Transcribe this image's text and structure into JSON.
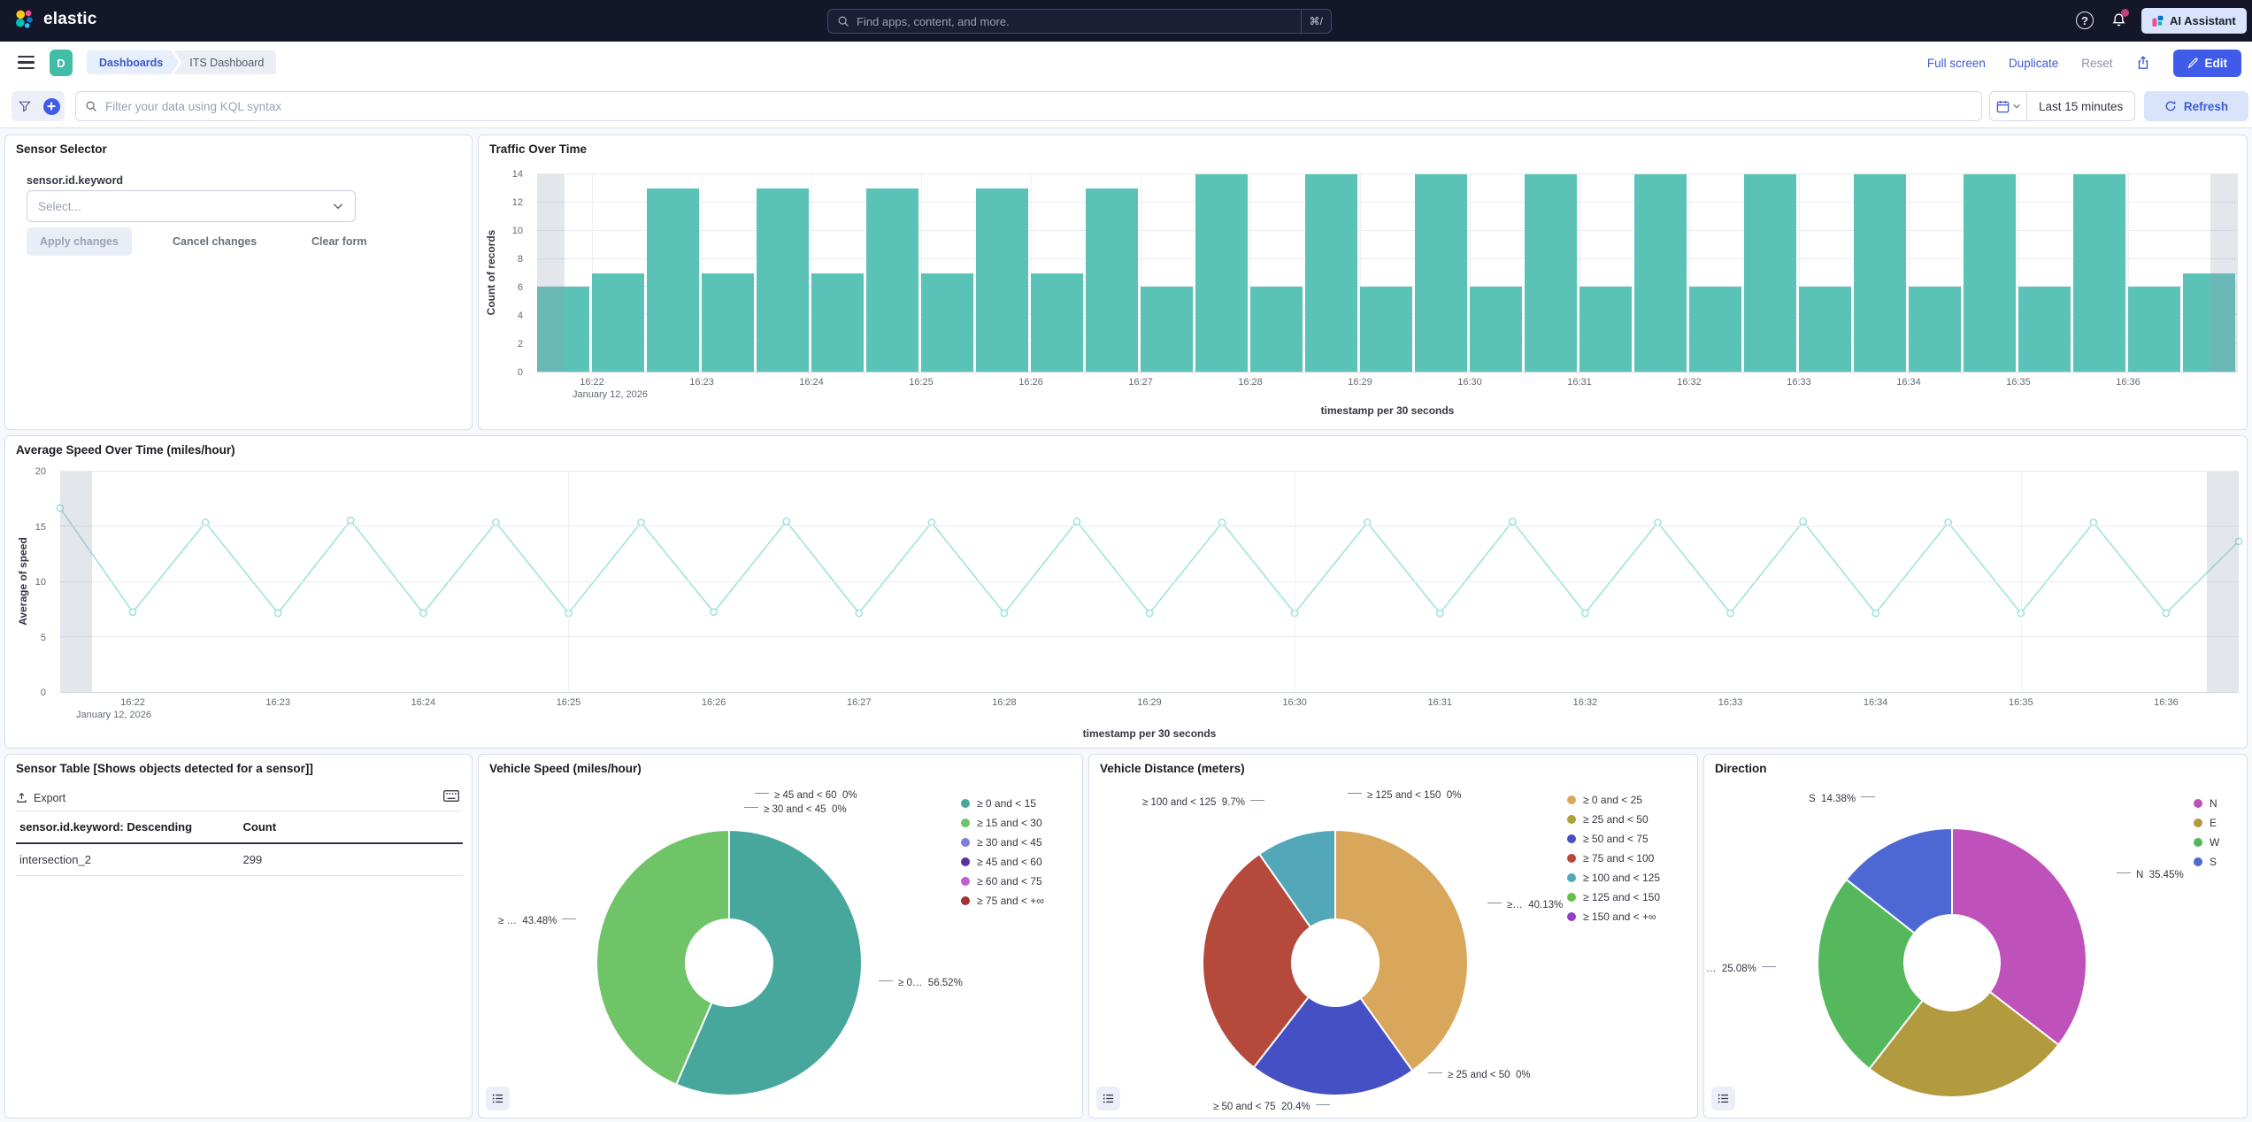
{
  "navbar": {
    "logo_text": "elastic",
    "search_placeholder": "Find apps, content, and more.",
    "search_shortcut": "⌘/",
    "help_label": "?",
    "ai_assistant_label": "AI Assistant"
  },
  "header": {
    "app_badge": "D",
    "breadcrumbs": [
      "Dashboards",
      "ITS Dashboard"
    ],
    "actions": {
      "full_screen": "Full screen",
      "duplicate": "Duplicate",
      "reset": "Reset",
      "edit": "Edit"
    }
  },
  "filter_bar": {
    "kql_placeholder": "Filter your data using KQL syntax",
    "time_range": "Last 15 minutes",
    "refresh_label": "Refresh"
  },
  "panels": {
    "sensor_selector": {
      "title": "Sensor Selector",
      "field_label": "sensor.id.keyword",
      "select_placeholder": "Select...",
      "apply_label": "Apply changes",
      "cancel_label": "Cancel changes",
      "clear_label": "Clear form"
    },
    "sensor_table": {
      "title": "Sensor Table [Shows objects detected for a sensor]]",
      "export_label": "Export",
      "columns": [
        "sensor.id.keyword: Descending",
        "Count"
      ],
      "rows": [
        [
          "intersection_2",
          "299"
        ]
      ]
    },
    "vehicle_speed": {
      "callouts": [
        "≥ 45 and < 60  0%",
        "≥ 30 and < 45  0%",
        "≥ …  43.48%",
        "≥ 0…  56.52%"
      ]
    },
    "vehicle_distance": {
      "callouts": [
        "≥ 125 and < 150  0%",
        "≥ 100 and < 125  9.7%",
        "≥…  40.13%",
        "≥ 25 and < 50  0%",
        "≥ 50 and < 75  20.4%"
      ]
    },
    "direction": {
      "callouts": [
        "S  14.38%",
        "N  35.45%",
        "…  25.08%"
      ]
    }
  },
  "chart_data": [
    {
      "id": "traffic",
      "type": "bar",
      "title": "Traffic Over Time",
      "xlabel": "timestamp per 30 seconds",
      "ylabel": "Count of records",
      "ylim": [
        0,
        14
      ],
      "yticks": [
        0,
        2,
        4,
        6,
        8,
        10,
        12,
        14
      ],
      "x_tick_labels": [
        "16:22",
        "16:23",
        "16:24",
        "16:25",
        "16:26",
        "16:27",
        "16:28",
        "16:29",
        "16:30",
        "16:31",
        "16:32",
        "16:33",
        "16:34",
        "16:35",
        "16:36"
      ],
      "date_label": "January 12, 2026",
      "categories": [
        "16:21:30",
        "16:22:00",
        "16:22:30",
        "16:23:00",
        "16:23:30",
        "16:24:00",
        "16:24:30",
        "16:25:00",
        "16:25:30",
        "16:26:00",
        "16:26:30",
        "16:27:00",
        "16:27:30",
        "16:28:00",
        "16:28:30",
        "16:29:00",
        "16:29:30",
        "16:30:00",
        "16:30:30",
        "16:31:00",
        "16:31:30",
        "16:32:00",
        "16:32:30",
        "16:33:00",
        "16:33:30",
        "16:34:00",
        "16:34:30",
        "16:35:00",
        "16:35:30",
        "16:36:00",
        "16:36:30"
      ],
      "values": [
        6,
        7,
        13,
        7,
        13,
        7,
        13,
        7,
        13,
        7,
        13,
        6,
        14,
        6,
        14,
        6,
        14,
        6,
        14,
        6,
        14,
        6,
        14,
        6,
        14,
        6,
        14,
        6,
        14,
        6,
        7
      ],
      "color": "#5bc2b7",
      "grid": true,
      "partial_bucket_shading": "first and last half-slot"
    },
    {
      "id": "avg_speed",
      "type": "line",
      "title": "Average Speed Over Time (miles/hour)",
      "xlabel": "timestamp per 30 seconds",
      "ylabel": "Average of speed",
      "ylim": [
        0,
        20
      ],
      "yticks": [
        0,
        5,
        10,
        15,
        20
      ],
      "x_tick_labels": [
        "16:22",
        "16:23",
        "16:24",
        "16:25",
        "16:26",
        "16:27",
        "16:28",
        "16:29",
        "16:30",
        "16:31",
        "16:32",
        "16:33",
        "16:34",
        "16:35",
        "16:36"
      ],
      "date_label": "January 12, 2026",
      "categories": [
        "16:21:30",
        "16:22:00",
        "16:22:30",
        "16:23:00",
        "16:23:30",
        "16:24:00",
        "16:24:30",
        "16:25:00",
        "16:25:30",
        "16:26:00",
        "16:26:30",
        "16:27:00",
        "16:27:30",
        "16:28:00",
        "16:28:30",
        "16:29:00",
        "16:29:30",
        "16:30:00",
        "16:30:30",
        "16:31:00",
        "16:31:30",
        "16:32:00",
        "16:32:30",
        "16:33:00",
        "16:33:30",
        "16:34:00",
        "16:34:30",
        "16:35:00",
        "16:35:30",
        "16:36:00",
        "16:36:30"
      ],
      "values": [
        16.7,
        7.3,
        15.4,
        7.2,
        15.6,
        7.2,
        15.4,
        7.2,
        15.4,
        7.3,
        15.5,
        7.2,
        15.4,
        7.2,
        15.5,
        7.2,
        15.4,
        7.2,
        15.4,
        7.2,
        15.5,
        7.2,
        15.4,
        7.2,
        15.5,
        7.2,
        15.4,
        7.2,
        15.4,
        7.2,
        13.7
      ],
      "color": "#9fe3da",
      "marker": "open-circle"
    },
    {
      "id": "vehicle_speed",
      "type": "pie",
      "title": "Vehicle Speed (miles/hour)",
      "legend_position": "right",
      "slices": [
        {
          "label": "≥ 0 and < 15",
          "pct": 56.52,
          "color": "#47a79c"
        },
        {
          "label": "≥ 15 and < 30",
          "pct": 43.48,
          "color": "#6ec467"
        },
        {
          "label": "≥ 30 and < 45",
          "pct": 0,
          "color": "#7a7fe0"
        },
        {
          "label": "≥ 45 and < 60",
          "pct": 0,
          "color": "#5d2ea8"
        },
        {
          "label": "≥ 60 and < 75",
          "pct": 0,
          "color": "#c15fd3"
        },
        {
          "label": "≥ 75 and < +∞",
          "pct": 0,
          "color": "#a0342f"
        }
      ]
    },
    {
      "id": "vehicle_distance",
      "type": "pie",
      "title": "Vehicle Distance (meters)",
      "legend_position": "right",
      "slices": [
        {
          "label": "≥ 0 and < 25",
          "pct": 40.13,
          "color": "#d8a75c"
        },
        {
          "label": "≥ 25 and < 50",
          "pct": 0,
          "color": "#b2a13b"
        },
        {
          "label": "≥ 50 and < 75",
          "pct": 20.4,
          "color": "#4450c4"
        },
        {
          "label": "≥ 75 and < 100",
          "pct": 29.77,
          "color": "#b5493c"
        },
        {
          "label": "≥ 100 and < 125",
          "pct": 9.7,
          "color": "#52a8b8"
        },
        {
          "label": "≥ 125 and < 150",
          "pct": 0,
          "color": "#68bf4a"
        },
        {
          "label": "≥ 150 and < +∞",
          "pct": 0,
          "color": "#9240c8"
        }
      ]
    },
    {
      "id": "direction",
      "type": "pie",
      "title": "Direction",
      "legend_position": "right",
      "slices": [
        {
          "label": "N",
          "pct": 35.45,
          "color": "#bf51ba"
        },
        {
          "label": "E",
          "pct": 25.09,
          "color": "#b29a3e"
        },
        {
          "label": "W",
          "pct": 25.08,
          "color": "#56b85c"
        },
        {
          "label": "S",
          "pct": 14.38,
          "color": "#4d68d3"
        }
      ]
    }
  ]
}
